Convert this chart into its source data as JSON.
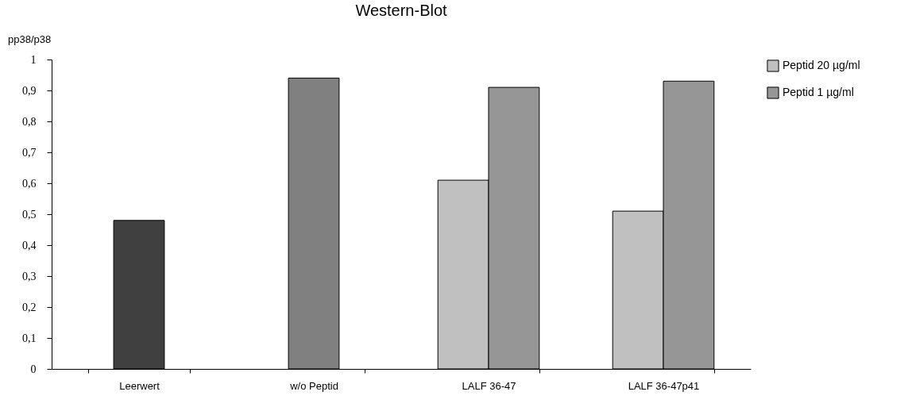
{
  "chart_data": {
    "type": "bar",
    "title": "Western-Blot",
    "ylabel": "pp38/p38",
    "categories": [
      "Leerwert",
      "w/o Peptid",
      "LALF 36-47",
      "LALF 36-47p41"
    ],
    "series": [
      {
        "name": "Peptid 20 µg/ml",
        "color": "#c0c0c0",
        "values": [
          null,
          null,
          0.61,
          0.51
        ]
      },
      {
        "name": "Peptid 1 µg/ml",
        "color": "#969696",
        "values": [
          null,
          null,
          0.91,
          0.93
        ]
      },
      {
        "colors": [
          "#404040",
          "#808080",
          null,
          null
        ],
        "values": [
          0.48,
          0.94,
          null,
          null
        ]
      }
    ],
    "ylim": [
      0,
      1
    ],
    "yticks": [
      {
        "value": 0,
        "label": "0"
      },
      {
        "value": 0.1,
        "label": "0,1"
      },
      {
        "value": 0.2,
        "label": "0,2"
      },
      {
        "value": 0.3,
        "label": "0,3"
      },
      {
        "value": 0.4,
        "label": "0,4"
      },
      {
        "value": 0.5,
        "label": "0,5"
      },
      {
        "value": 0.6,
        "label": "0,6"
      },
      {
        "value": 0.7,
        "label": "0,7"
      },
      {
        "value": 0.8,
        "label": "0,8"
      },
      {
        "value": 0.9,
        "label": "0,9"
      },
      {
        "value": 1,
        "label": "1"
      }
    ],
    "grid": false,
    "legend": "top right"
  }
}
